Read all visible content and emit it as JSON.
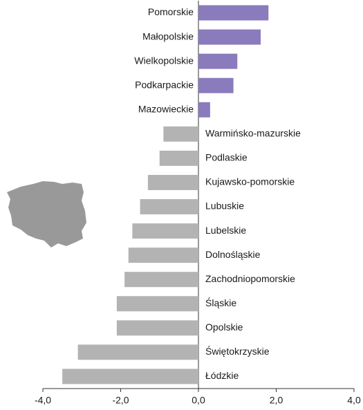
{
  "chart_data": {
    "type": "bar",
    "orientation": "horizontal",
    "categories": [
      "Pomorskie",
      "Małopolskie",
      "Wielkopolskie",
      "Podkarpackie",
      "Mazowieckie",
      "Warmińsko-mazurskie",
      "Podlaskie",
      "Kujawsko-pomorskie",
      "Lubuskie",
      "Lubelskie",
      "Dolnośląskie",
      "Zachodniopomorskie",
      "Śląskie",
      "Opolskie",
      "Świętokrzyskie",
      "Łódzkie"
    ],
    "values": [
      1.8,
      1.6,
      1.0,
      0.9,
      0.3,
      -0.9,
      -1.0,
      -1.3,
      -1.5,
      -1.7,
      -1.8,
      -1.9,
      -2.1,
      -2.1,
      -3.1,
      -3.5
    ],
    "color_positive": "#8a7bbd",
    "color_negative": "#b3b3b3",
    "xlim": [
      -4,
      4
    ],
    "xticks": [
      {
        "value": -4,
        "label": "-4,0"
      },
      {
        "value": -2,
        "label": "-2,0"
      },
      {
        "value": 0,
        "label": "0,0"
      },
      {
        "value": 2,
        "label": "2,0"
      },
      {
        "value": 4,
        "label": "4,0"
      }
    ]
  }
}
